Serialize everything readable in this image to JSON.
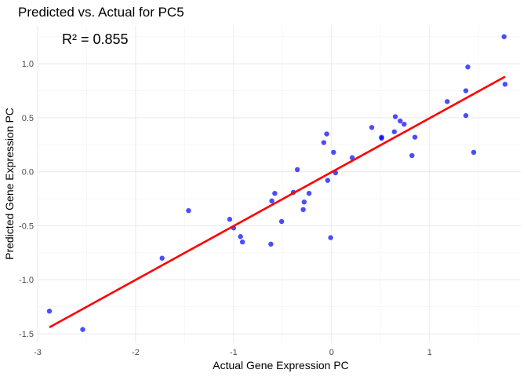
{
  "chart_data": {
    "type": "scatter",
    "title": "Predicted vs. Actual for PC5",
    "xlabel": "Actual Gene Expression PC",
    "ylabel": "Predicted Gene Expression PC",
    "annotation": "R² = 0.855",
    "xlim": [
      -3.0,
      1.93
    ],
    "ylim": [
      -1.58,
      1.35
    ],
    "x_ticks": [
      -3,
      -2,
      -1,
      0,
      1
    ],
    "x_tick_labels": [
      "-3",
      "-2",
      "-1",
      "0",
      "1"
    ],
    "y_ticks": [
      -1.5,
      -1.0,
      -0.5,
      0.0,
      0.5,
      1.0
    ],
    "y_tick_labels": [
      "-1.5",
      "-1.0",
      "-0.5",
      "0.0",
      "0.5",
      "1.0"
    ],
    "grid": true,
    "point_color": "#0000ff",
    "line_color": "#ff0000",
    "series": [
      {
        "type": "scatter",
        "x": [
          -2.88,
          -2.54,
          -1.73,
          -1.46,
          -1.04,
          -1.0,
          -0.93,
          -0.91,
          -0.62,
          -0.61,
          -0.58,
          -0.51,
          -0.39,
          -0.35,
          -0.29,
          -0.28,
          -0.23,
          -0.08,
          -0.05,
          -0.04,
          -0.01,
          0.02,
          0.04,
          0.21,
          0.41,
          0.51,
          0.51,
          0.64,
          0.65,
          0.7,
          0.74,
          0.82,
          0.85,
          1.18,
          1.37,
          1.37,
          1.39,
          1.45,
          1.76,
          1.77
        ],
        "y": [
          -1.29,
          -1.46,
          -0.8,
          -0.36,
          -0.44,
          -0.52,
          -0.6,
          -0.65,
          -0.67,
          -0.27,
          -0.2,
          -0.46,
          -0.19,
          0.02,
          -0.35,
          -0.28,
          -0.2,
          0.27,
          0.35,
          -0.08,
          -0.61,
          0.18,
          -0.01,
          0.13,
          0.41,
          0.31,
          0.32,
          0.37,
          0.51,
          0.47,
          0.44,
          0.15,
          0.32,
          0.65,
          0.75,
          0.52,
          0.97,
          0.18,
          1.25,
          0.81
        ]
      },
      {
        "type": "line",
        "x": [
          -2.88,
          1.77
        ],
        "y": [
          -1.44,
          0.88
        ]
      }
    ]
  }
}
